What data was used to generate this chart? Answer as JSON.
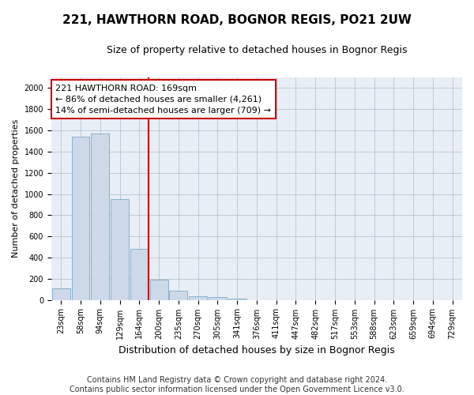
{
  "title": "221, HAWTHORN ROAD, BOGNOR REGIS, PO21 2UW",
  "subtitle": "Size of property relative to detached houses in Bognor Regis",
  "xlabel": "Distribution of detached houses by size in Bognor Regis",
  "ylabel": "Number of detached properties",
  "categories": [
    "23sqm",
    "58sqm",
    "94sqm",
    "129sqm",
    "164sqm",
    "200sqm",
    "235sqm",
    "270sqm",
    "305sqm",
    "341sqm",
    "376sqm",
    "411sqm",
    "447sqm",
    "482sqm",
    "517sqm",
    "553sqm",
    "588sqm",
    "623sqm",
    "659sqm",
    "694sqm",
    "729sqm"
  ],
  "values": [
    110,
    1540,
    1570,
    950,
    480,
    190,
    90,
    35,
    25,
    15,
    0,
    0,
    0,
    0,
    0,
    0,
    0,
    0,
    0,
    0,
    0
  ],
  "bar_color": "#cdd9e8",
  "bar_edge_color": "#7aaac8",
  "highlight_line_index": 4,
  "highlight_line_color": "#cc0000",
  "annotation_text": "221 HAWTHORN ROAD: 169sqm\n← 86% of detached houses are smaller (4,261)\n14% of semi-detached houses are larger (709) →",
  "annotation_box_color": "#cc0000",
  "ylim": [
    0,
    2100
  ],
  "yticks": [
    0,
    200,
    400,
    600,
    800,
    1000,
    1200,
    1400,
    1600,
    1800,
    2000
  ],
  "footer_line1": "Contains HM Land Registry data © Crown copyright and database right 2024.",
  "footer_line2": "Contains public sector information licensed under the Open Government Licence v3.0.",
  "fig_background_color": "#ffffff",
  "plot_background_color": "#e8eef5",
  "title_fontsize": 11,
  "subtitle_fontsize": 9,
  "xlabel_fontsize": 9,
  "ylabel_fontsize": 8,
  "tick_fontsize": 7,
  "footer_fontsize": 7,
  "ann_fontsize": 8
}
